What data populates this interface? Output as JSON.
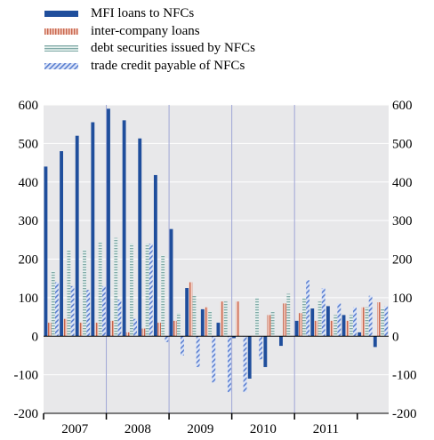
{
  "chart_data": {
    "type": "bar",
    "title": "",
    "xlabel": "",
    "ylabel": "",
    "ylim": [
      -200,
      600
    ],
    "yticks": [
      -200,
      -100,
      0,
      100,
      200,
      300,
      400,
      500,
      600
    ],
    "ytick_labels": [
      "-200",
      "-100",
      "0",
      "100",
      "200",
      "300",
      "400",
      "500",
      "600"
    ],
    "years": [
      "2007",
      "2008",
      "2009",
      "2010",
      "2011"
    ],
    "legend_position": "top-left",
    "grid": true,
    "periods": 22,
    "series": [
      {
        "name": "MFI loans to NFCs",
        "color": "#1f4e9c",
        "pattern": "solid",
        "values": [
          440,
          480,
          520,
          555,
          590,
          560,
          513,
          418,
          278,
          125,
          70,
          35,
          -5,
          -110,
          -80,
          -25,
          40,
          72,
          78,
          55,
          10,
          -28
        ]
      },
      {
        "name": "inter-company loans",
        "color": "#d98a7a",
        "pattern": "vertical-stripes",
        "values": [
          35,
          45,
          35,
          35,
          40,
          10,
          20,
          35,
          40,
          140,
          75,
          90,
          90,
          0,
          55,
          85,
          60,
          40,
          40,
          40,
          75,
          88
        ]
      },
      {
        "name": "debt securities issued by NFCs",
        "color": "#9fc7c4",
        "pattern": "horizontal-stripes",
        "values": [
          170,
          225,
          225,
          245,
          255,
          240,
          240,
          210,
          60,
          105,
          65,
          90,
          0,
          100,
          65,
          110,
          100,
          90,
          55,
          55,
          75,
          72
        ]
      },
      {
        "name": "trade credit payable of NFCs",
        "color": "#6f8fd8",
        "pattern": "diagonal-stripes",
        "values": [
          140,
          130,
          120,
          130,
          95,
          45,
          240,
          -15,
          -50,
          -80,
          -120,
          -145,
          -145,
          -60,
          0,
          0,
          145,
          125,
          85,
          75,
          105,
          78
        ]
      }
    ]
  }
}
